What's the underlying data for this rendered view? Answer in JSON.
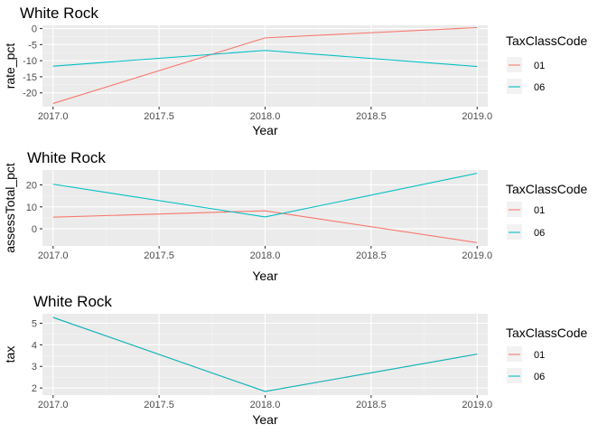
{
  "chart_data": [
    {
      "type": "line",
      "title": "White Rock",
      "xlabel": "Year",
      "ylabel": "rate_pct",
      "xlim": [
        2016.95,
        2019.05
      ],
      "ylim": [
        -24.3,
        1.0
      ],
      "x_ticks": [
        "2017.0",
        "2017.5",
        "2018.0",
        "2018.5",
        "2019.0"
      ],
      "y_ticks": [
        "-20",
        "-15",
        "-10",
        "-5",
        "0"
      ],
      "legend_title": "TaxClassCode",
      "legend_position": "right",
      "grid": true,
      "series": [
        {
          "name": "01",
          "color": "#F8766D",
          "x": [
            2017,
            2018,
            2019
          ],
          "y": [
            -23.3,
            -2.9,
            0.3
          ]
        },
        {
          "name": "06",
          "color": "#00BFC4",
          "x": [
            2017,
            2018,
            2019
          ],
          "y": [
            -11.7,
            -6.8,
            -11.8
          ]
        }
      ]
    },
    {
      "type": "line",
      "title": "White Rock",
      "xlabel": "Year",
      "ylabel": "assessTotal_pct",
      "xlim": [
        2016.95,
        2019.05
      ],
      "ylim": [
        -7.8,
        26.8
      ],
      "x_ticks": [
        "2017.0",
        "2017.5",
        "2018.0",
        "2018.5",
        "2019.0"
      ],
      "y_ticks": [
        "0",
        "10",
        "20"
      ],
      "legend_title": "TaxClassCode",
      "legend_position": "right",
      "grid": true,
      "series": [
        {
          "name": "01",
          "color": "#F8766D",
          "x": [
            2017,
            2018,
            2019
          ],
          "y": [
            5.3,
            8.2,
            -6.3
          ]
        },
        {
          "name": "06",
          "color": "#00BFC4",
          "x": [
            2017,
            2018,
            2019
          ],
          "y": [
            20.3,
            5.4,
            25.3
          ]
        }
      ]
    },
    {
      "type": "line",
      "title": "White Rock",
      "xlabel": "Year",
      "ylabel": "tax",
      "xlim": [
        2016.95,
        2019.05
      ],
      "ylim": [
        1.67,
        5.44
      ],
      "x_ticks": [
        "2017.0",
        "2017.5",
        "2018.0",
        "2018.5",
        "2019.0"
      ],
      "y_ticks": [
        "2",
        "3",
        "4",
        "5"
      ],
      "legend_title": "TaxClassCode",
      "legend_position": "right",
      "grid": true,
      "series": [
        {
          "name": "01",
          "color": "#F8766D",
          "x": [
            2017,
            2018,
            2019
          ],
          "y": [
            5.27,
            1.84,
            3.57
          ]
        },
        {
          "name": "06",
          "color": "#00BFC4",
          "x": [
            2017,
            2018,
            2019
          ],
          "y": [
            5.27,
            1.84,
            3.57
          ]
        }
      ]
    }
  ]
}
